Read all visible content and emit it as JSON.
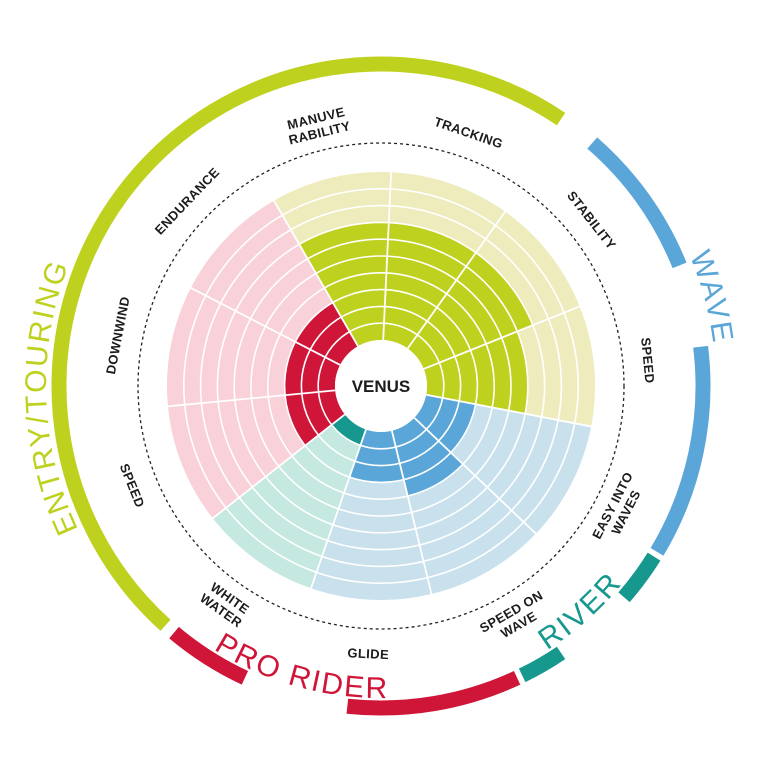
{
  "chart_data": {
    "type": "radial",
    "title": "VENUS",
    "scale_max": 10,
    "groups": [
      {
        "name": "ENTRY/TOURING",
        "color": "#bfd11f"
      },
      {
        "name": "WAVE",
        "color": "#5ba6d8"
      },
      {
        "name": "RIVER",
        "color": "#17988e"
      },
      {
        "name": "PRO RIDER",
        "color": "#cf1538"
      }
    ],
    "criteria": [
      {
        "label": "MANUVE RABILITY",
        "group": "ENTRY/TOURING",
        "value": 7
      },
      {
        "label": "TRACKING",
        "group": "ENTRY/TOURING",
        "value": 7
      },
      {
        "label": "STABILITY",
        "group": "ENTRY/TOURING",
        "value": 7
      },
      {
        "label": "SPEED",
        "group": "ENTRY/TOURING",
        "value": 6
      },
      {
        "label": "EASY INTO WAVES",
        "group": "WAVE",
        "value": 3
      },
      {
        "label": "SPEED ON WAVE",
        "group": "WAVE",
        "value": 4
      },
      {
        "label": "GLIDE",
        "group": "WAVE",
        "value": 3
      },
      {
        "label": "WHITE WATER",
        "group": "RIVER",
        "value": 1
      },
      {
        "label": "SPEED",
        "group": "PRO RIDER",
        "value": 3
      },
      {
        "label": "DOWNWIND",
        "group": "PRO RIDER",
        "value": 3
      },
      {
        "label": "ENDURANCE",
        "group": "PRO RIDER",
        "value": 3
      }
    ],
    "light_colors": {
      "ENTRY/TOURING": "#eeebbd",
      "WAVE": "#c8e1ed",
      "RIVER": "#c5e8e0",
      "PRO RIDER": "#f8d1d9"
    }
  }
}
